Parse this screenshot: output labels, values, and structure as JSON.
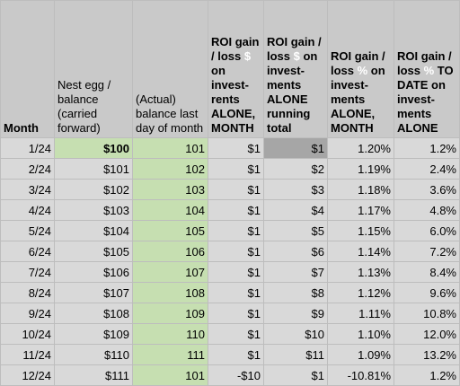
{
  "columns": [
    {
      "label": "Month"
    },
    {
      "label": "Nest egg / balance (carried forward)"
    },
    {
      "label": "(Actual) balance last day of month"
    },
    {
      "pre": "ROI gain / loss ",
      "sym": "$",
      "post": " on invest-rents ALONE, MONTH"
    },
    {
      "pre": "ROI gain / loss ",
      "sym": "$",
      "post": " on invest-ments ALONE running total"
    },
    {
      "pre": "ROI gain / loss ",
      "sym": "%",
      "post": " on invest-ments ALONE, MONTH"
    },
    {
      "pre": "ROI gain / loss ",
      "sym": "%",
      "post": " TO DATE on invest-ments ALONE"
    }
  ],
  "rows": [
    [
      "1/24",
      "$100",
      "101",
      "$1",
      "$1",
      "1.20%",
      "1.2%"
    ],
    [
      "2/24",
      "$101",
      "102",
      "$1",
      "$2",
      "1.19%",
      "2.4%"
    ],
    [
      "3/24",
      "$102",
      "103",
      "$1",
      "$3",
      "1.18%",
      "3.6%"
    ],
    [
      "4/24",
      "$103",
      "104",
      "$1",
      "$4",
      "1.17%",
      "4.8%"
    ],
    [
      "5/24",
      "$104",
      "105",
      "$1",
      "$5",
      "1.15%",
      "6.0%"
    ],
    [
      "6/24",
      "$105",
      "106",
      "$1",
      "$6",
      "1.14%",
      "7.2%"
    ],
    [
      "7/24",
      "$106",
      "107",
      "$1",
      "$7",
      "1.13%",
      "8.4%"
    ],
    [
      "8/24",
      "$107",
      "108",
      "$1",
      "$8",
      "1.12%",
      "9.6%"
    ],
    [
      "9/24",
      "$108",
      "109",
      "$1",
      "$9",
      "1.11%",
      "10.8%"
    ],
    [
      "10/24",
      "$109",
      "110",
      "$1",
      "$10",
      "1.10%",
      "12.0%"
    ],
    [
      "11/24",
      "$110",
      "111",
      "$1",
      "$11",
      "1.09%",
      "13.2%"
    ],
    [
      "12/24",
      "$111",
      "101",
      "-$10",
      "$1",
      "-10.81%",
      "1.2%"
    ]
  ]
}
